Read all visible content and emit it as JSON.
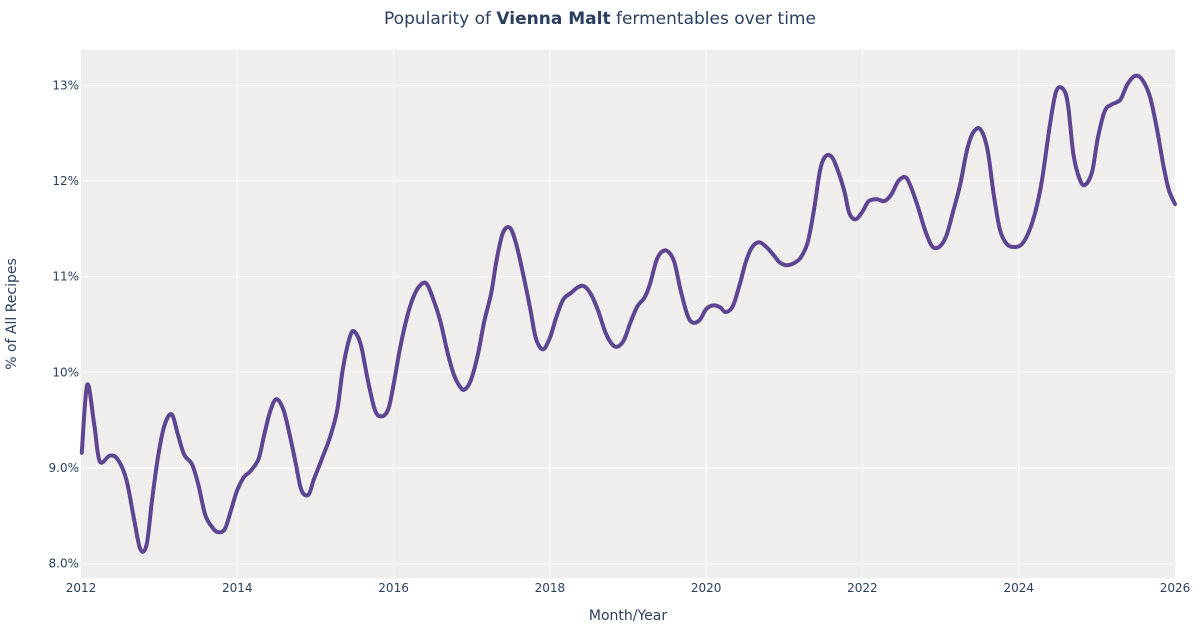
{
  "chart_data": {
    "type": "line",
    "title": {
      "prefix": "Popularity of ",
      "bold": "Vienna Malt",
      "suffix": " fermentables over time"
    },
    "xlabel": "Month/Year",
    "ylabel": "% of All Recipes",
    "xlim": [
      2012,
      2026
    ],
    "ylim": [
      7.85,
      13.37
    ],
    "grid": true,
    "x_ticks": [
      2012,
      2014,
      2016,
      2018,
      2020,
      2022,
      2024,
      2026
    ],
    "x_tick_labels": [
      "2012",
      "2014",
      "2016",
      "2018",
      "2020",
      "2022",
      "2024",
      "2026"
    ],
    "y_ticks": [
      8,
      9,
      10,
      11,
      12,
      13
    ],
    "y_tick_labels": [
      "8.0%",
      "9.0%",
      "10%",
      "11%",
      "12%",
      "13%"
    ],
    "colors": {
      "line": "#5e4591",
      "plot_bg": "#efeeed",
      "grid": "#ffffff"
    },
    "series": [
      {
        "x": [
          2012.01,
          2012.08,
          2012.17,
          2012.24,
          2012.37,
          2012.47,
          2012.58,
          2012.68,
          2012.76,
          2012.84,
          2012.91,
          2012.99,
          2013.07,
          2013.16,
          2013.24,
          2013.32,
          2013.42,
          2013.5,
          2013.59,
          2013.68,
          2013.75,
          2013.84,
          2013.92,
          2014.0,
          2014.09,
          2014.16,
          2014.27,
          2014.34,
          2014.42,
          2014.5,
          2014.59,
          2014.67,
          2014.75,
          2014.82,
          2014.91,
          2014.98,
          2015.08,
          2015.19,
          2015.28,
          2015.35,
          2015.43,
          2015.49,
          2015.58,
          2015.67,
          2015.76,
          2015.84,
          2015.93,
          2016.0,
          2016.08,
          2016.17,
          2016.25,
          2016.33,
          2016.42,
          2016.51,
          2016.6,
          2016.69,
          2016.77,
          2016.85,
          2016.91,
          2016.99,
          2017.08,
          2017.16,
          2017.25,
          2017.32,
          2017.4,
          2017.49,
          2017.57,
          2017.66,
          2017.75,
          2017.82,
          2017.91,
          2018.0,
          2018.08,
          2018.17,
          2018.27,
          2018.36,
          2018.44,
          2018.53,
          2018.62,
          2018.71,
          2018.8,
          2018.87,
          2018.95,
          2019.03,
          2019.12,
          2019.21,
          2019.28,
          2019.36,
          2019.42,
          2019.5,
          2019.59,
          2019.67,
          2019.76,
          2019.83,
          2019.92,
          2020.0,
          2020.09,
          2020.18,
          2020.25,
          2020.34,
          2020.43,
          2020.51,
          2020.59,
          2020.68,
          2020.77,
          2020.86,
          2020.94,
          2021.03,
          2021.12,
          2021.21,
          2021.3,
          2021.38,
          2021.46,
          2021.53,
          2021.61,
          2021.69,
          2021.77,
          2021.83,
          2021.91,
          2022.0,
          2022.08,
          2022.19,
          2022.28,
          2022.37,
          2022.46,
          2022.55,
          2022.62,
          2022.71,
          2022.8,
          2022.89,
          2022.98,
          2023.07,
          2023.16,
          2023.25,
          2023.34,
          2023.42,
          2023.51,
          2023.6,
          2023.68,
          2023.76,
          2023.85,
          2023.95,
          2024.04,
          2024.13,
          2024.22,
          2024.3,
          2024.4,
          2024.48,
          2024.57,
          2024.63,
          2024.7,
          2024.78,
          2024.85,
          2024.94,
          2025.01,
          2025.1,
          2025.19,
          2025.3,
          2025.39,
          2025.49,
          2025.58,
          2025.68,
          2025.77,
          2025.85,
          2025.92,
          2026.0
        ],
        "y": [
          9.16,
          9.87,
          9.45,
          9.07,
          9.13,
          9.09,
          8.88,
          8.46,
          8.15,
          8.2,
          8.67,
          9.14,
          9.45,
          9.56,
          9.35,
          9.14,
          9.04,
          8.83,
          8.51,
          8.38,
          8.33,
          8.36,
          8.56,
          8.77,
          8.91,
          8.96,
          9.09,
          9.33,
          9.59,
          9.72,
          9.61,
          9.35,
          9.04,
          8.77,
          8.72,
          8.88,
          9.09,
          9.33,
          9.61,
          10.03,
          10.34,
          10.43,
          10.29,
          9.92,
          9.61,
          9.54,
          9.61,
          9.87,
          10.24,
          10.57,
          10.78,
          10.9,
          10.93,
          10.76,
          10.53,
          10.21,
          9.98,
          9.85,
          9.82,
          9.92,
          10.19,
          10.53,
          10.83,
          11.18,
          11.46,
          11.51,
          11.34,
          11.02,
          10.66,
          10.36,
          10.24,
          10.36,
          10.57,
          10.76,
          10.83,
          10.89,
          10.9,
          10.81,
          10.64,
          10.42,
          10.29,
          10.27,
          10.34,
          10.52,
          10.69,
          10.78,
          10.92,
          11.16,
          11.25,
          11.27,
          11.16,
          10.87,
          10.6,
          10.52,
          10.55,
          10.66,
          10.7,
          10.68,
          10.63,
          10.69,
          10.92,
          11.16,
          11.31,
          11.36,
          11.31,
          11.23,
          11.15,
          11.12,
          11.14,
          11.2,
          11.36,
          11.7,
          12.12,
          12.26,
          12.25,
          12.1,
          11.89,
          11.67,
          11.6,
          11.68,
          11.79,
          11.81,
          11.79,
          11.86,
          12.0,
          12.04,
          11.94,
          11.73,
          11.49,
          11.32,
          11.31,
          11.42,
          11.68,
          11.96,
          12.33,
          12.51,
          12.54,
          12.33,
          11.86,
          11.49,
          11.34,
          11.31,
          11.34,
          11.47,
          11.7,
          12.02,
          12.59,
          12.94,
          12.96,
          12.8,
          12.28,
          12.02,
          11.96,
          12.1,
          12.44,
          12.73,
          12.8,
          12.85,
          13.01,
          13.1,
          13.06,
          12.88,
          12.54,
          12.17,
          11.91,
          11.76
        ]
      }
    ]
  }
}
